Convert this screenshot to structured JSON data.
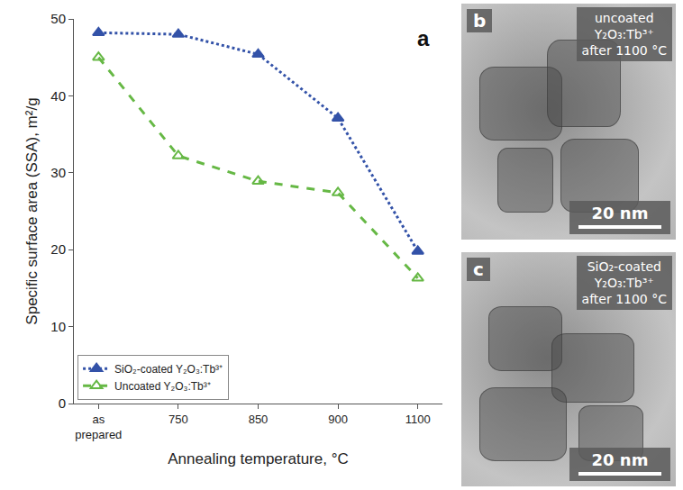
{
  "chart_data": {
    "type": "line",
    "panel_label": "a",
    "x_label": "Annealing temperature, °C",
    "y_label": "Specific surface area (SSA), m²/g",
    "categories": [
      "as prepared",
      "750",
      "850",
      "900",
      "1100"
    ],
    "series": [
      {
        "name": "SiO₂-coated Y₂O₃:Tb³⁺",
        "color": "#3352a8",
        "marker": "triangle-up",
        "line_style": "dot",
        "values": [
          48.2,
          48.0,
          45.4,
          37.1,
          19.8
        ]
      },
      {
        "name": "Uncoated Y₂O₃:Tb³⁺",
        "color": "#66b845",
        "marker": "triangle-up-open",
        "line_style": "dash",
        "values": [
          45.0,
          32.2,
          28.9,
          27.4,
          16.3
        ]
      }
    ],
    "ylim": [
      0,
      50
    ],
    "yticks": [
      0,
      10,
      20,
      30,
      40,
      50
    ],
    "grid": false,
    "legend": "lower left"
  },
  "image_panels": [
    {
      "label": "b",
      "caption_lines": [
        "uncoated",
        "Y₂O₃:Tb³⁺",
        "after 1100 °C"
      ],
      "scale_bar": "20 nm"
    },
    {
      "label": "c",
      "caption_lines": [
        "SiO₂-coated",
        "Y₂O₃:Tb³⁺",
        "after 1100 °C"
      ],
      "scale_bar": "20 nm"
    }
  ]
}
